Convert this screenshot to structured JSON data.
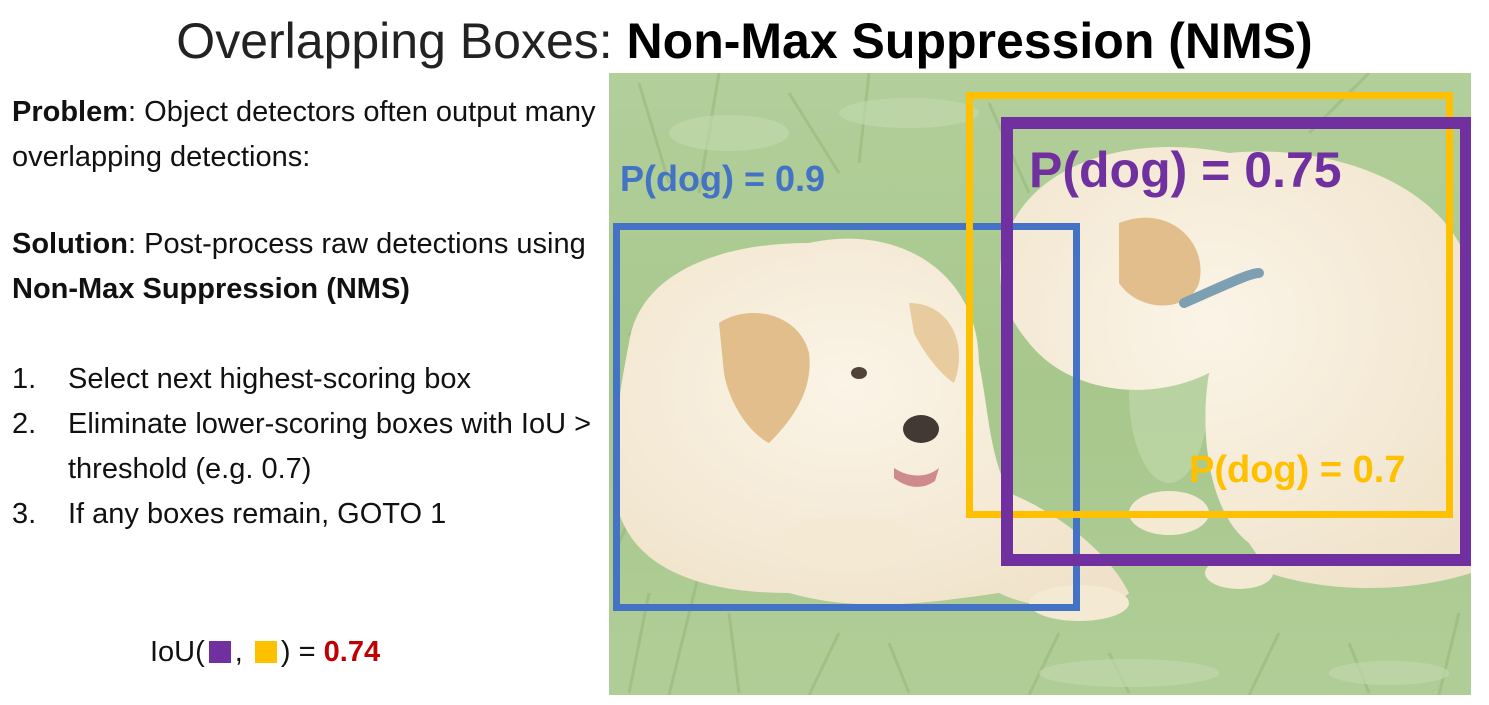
{
  "title": {
    "light": "Overlapping Boxes: ",
    "bold": "Non-Max Suppression (NMS)"
  },
  "problem": {
    "label": "Problem",
    "text": ": Object detectors often output many overlapping detections:"
  },
  "solution": {
    "label": "Solution",
    "text": ": Post-process raw detections using ",
    "emphasis": "Non-Max Suppression (NMS)"
  },
  "steps": [
    {
      "num": "1.",
      "text": "Select next highest-scoring box"
    },
    {
      "num": "2.",
      "text": "Eliminate lower-scoring boxes with IoU > threshold (e.g. 0.7)"
    },
    {
      "num": "3.",
      "text": "If any boxes remain, GOTO 1"
    }
  ],
  "iou": {
    "prefix": "IoU(",
    "separator": ",",
    "suffix": ") = ",
    "value": "0.74"
  },
  "detections": [
    {
      "label": "P(dog) = 0.9",
      "color": "#4472c4"
    },
    {
      "label": "P(dog) = 0.75",
      "color": "#7030a0"
    },
    {
      "label": "P(dog) = 0.7",
      "color": "#ffc000"
    }
  ],
  "colors": {
    "blue": "#4472c4",
    "purple": "#7030a0",
    "yellow": "#ffc000",
    "red": "#c00000"
  }
}
